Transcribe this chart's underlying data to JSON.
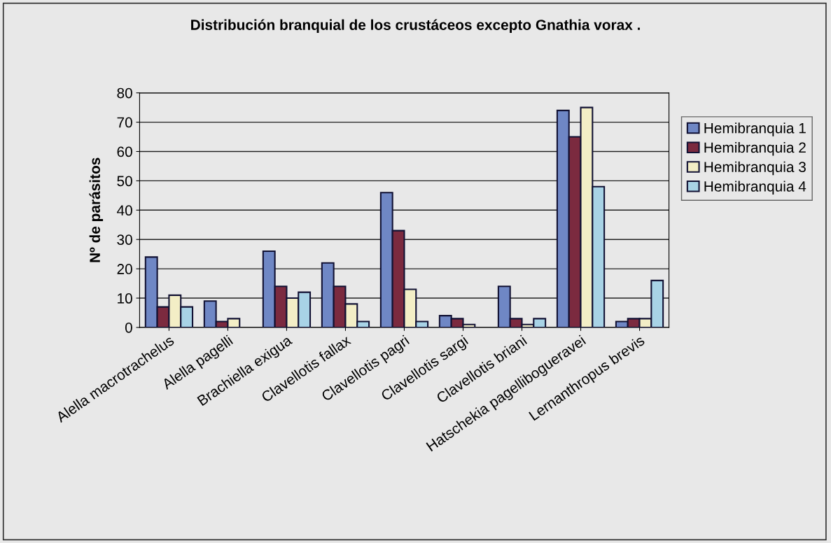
{
  "chart_data": {
    "type": "bar",
    "title": "Distribución branquial de los crustáceos excepto Gnathia vorax .",
    "ylabel": "Nº de parásitos",
    "categories": [
      "Alella macrotrachelus",
      "Alella pagelli",
      "Brachiella exigua",
      "Clavellotis fallax",
      "Clavellotis pagri",
      "Clavellotis sargi",
      "Clavellotis briani",
      "Hatschekia pagellibogueravei",
      "Lernanthropus brevis"
    ],
    "series": [
      {
        "name": "Hemibranquia 1",
        "color": "#6f87c5",
        "values": [
          24,
          9,
          26,
          22,
          46,
          4,
          14,
          74,
          2
        ]
      },
      {
        "name": "Hemibranquia 2",
        "color": "#7b2a3f",
        "values": [
          7,
          2,
          14,
          14,
          33,
          3,
          3,
          65,
          3
        ]
      },
      {
        "name": "Hemibranquia 3",
        "color": "#f3eec6",
        "values": [
          11,
          3,
          10,
          8,
          13,
          1,
          1,
          75,
          3
        ]
      },
      {
        "name": "Hemibranquia 4",
        "color": "#a8d3e6",
        "values": [
          7,
          0,
          12,
          2,
          2,
          0,
          3,
          48,
          16
        ]
      }
    ],
    "ylim": [
      0,
      80
    ],
    "yticks": [
      0,
      10,
      20,
      30,
      40,
      50,
      60,
      70,
      80
    ],
    "grid": "y",
    "legend": "right"
  }
}
